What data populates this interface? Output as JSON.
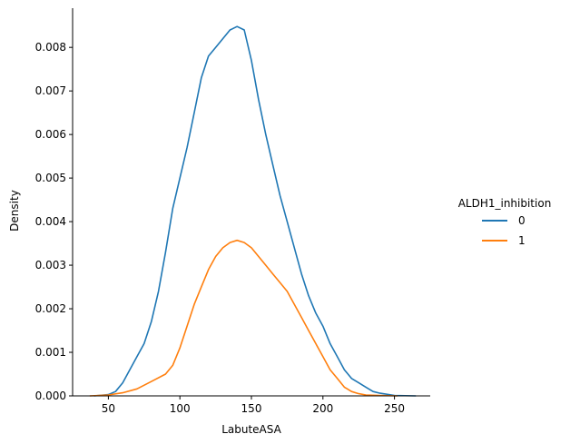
{
  "chart_data": {
    "type": "line",
    "xlabel": "LabuteASA",
    "ylabel": "Density",
    "xlim": [
      25,
      275
    ],
    "ylim": [
      0,
      0.0089
    ],
    "xticks": [
      50,
      100,
      150,
      200,
      250
    ],
    "yticks": [
      0.0,
      0.001,
      0.002,
      0.003,
      0.004,
      0.005,
      0.006,
      0.007,
      0.008
    ],
    "ytick_labels": [
      "0.000",
      "0.001",
      "0.002",
      "0.003",
      "0.004",
      "0.005",
      "0.006",
      "0.007",
      "0.008"
    ],
    "grid": false,
    "legend": {
      "title": "ALDH1_inhibition",
      "placement": "right"
    },
    "series": [
      {
        "name": "0",
        "color": "#1f77b4",
        "x": [
          40,
          50,
          55,
          60,
          65,
          70,
          75,
          80,
          85,
          90,
          95,
          100,
          105,
          110,
          115,
          120,
          125,
          130,
          135,
          140,
          145,
          150,
          155,
          160,
          165,
          170,
          175,
          180,
          185,
          190,
          195,
          200,
          205,
          210,
          215,
          220,
          225,
          230,
          235,
          240,
          250,
          265
        ],
        "values": [
          0.0,
          3e-05,
          0.0001,
          0.0003,
          0.0006,
          0.0009,
          0.0012,
          0.0017,
          0.0024,
          0.0033,
          0.0043,
          0.005,
          0.0057,
          0.0065,
          0.0073,
          0.0078,
          0.008,
          0.0082,
          0.0084,
          0.00848,
          0.0084,
          0.0077,
          0.0068,
          0.006,
          0.0053,
          0.0046,
          0.004,
          0.0034,
          0.0028,
          0.0023,
          0.0019,
          0.0016,
          0.0012,
          0.0009,
          0.0006,
          0.0004,
          0.0003,
          0.0002,
          0.0001,
          6e-05,
          1e-05,
          0.0
        ]
      },
      {
        "name": "1",
        "color": "#ff7f0e",
        "x": [
          37,
          50,
          60,
          70,
          80,
          90,
          95,
          100,
          105,
          110,
          115,
          120,
          125,
          130,
          135,
          140,
          145,
          150,
          155,
          160,
          165,
          170,
          175,
          180,
          185,
          190,
          195,
          200,
          205,
          210,
          215,
          220,
          225,
          230,
          240,
          252
        ],
        "values": [
          0.0,
          2e-05,
          7e-05,
          0.00016,
          0.00033,
          0.0005,
          0.0007,
          0.0011,
          0.0016,
          0.0021,
          0.0025,
          0.0029,
          0.0032,
          0.0034,
          0.00352,
          0.00357,
          0.00352,
          0.0034,
          0.0032,
          0.003,
          0.0028,
          0.0026,
          0.0024,
          0.0021,
          0.0018,
          0.0015,
          0.0012,
          0.0009,
          0.0006,
          0.0004,
          0.0002,
          0.0001,
          5e-05,
          2e-05,
          1e-05,
          0.0
        ]
      }
    ]
  }
}
